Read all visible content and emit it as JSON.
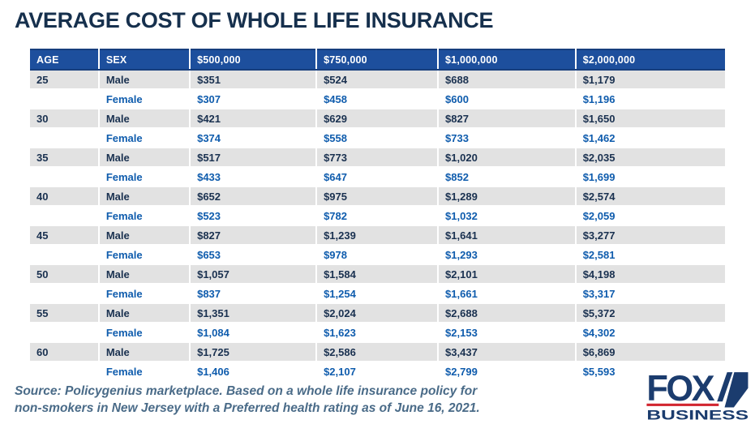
{
  "title": "AVERAGE COST OF WHOLE LIFE INSURANCE",
  "chart_data": {
    "type": "table",
    "title": "AVERAGE COST OF WHOLE LIFE INSURANCE",
    "columns": [
      "AGE",
      "SEX",
      "$500,000",
      "$750,000",
      "$1,000,000",
      "$2,000,000"
    ],
    "rows": [
      {
        "age": "25",
        "sex": "Male",
        "variant": "male",
        "values": [
          "$351",
          "$524",
          "$688",
          "$1,179"
        ]
      },
      {
        "age": "",
        "sex": "Female",
        "variant": "female",
        "values": [
          "$307",
          "$458",
          "$600",
          "$1,196"
        ]
      },
      {
        "age": "30",
        "sex": "Male",
        "variant": "male",
        "values": [
          "$421",
          "$629",
          "$827",
          "$1,650"
        ]
      },
      {
        "age": "",
        "sex": "Female",
        "variant": "female",
        "values": [
          "$374",
          "$558",
          "$733",
          "$1,462"
        ]
      },
      {
        "age": "35",
        "sex": "Male",
        "variant": "male",
        "values": [
          "$517",
          "$773",
          "$1,020",
          "$2,035"
        ]
      },
      {
        "age": "",
        "sex": "Female",
        "variant": "female",
        "values": [
          "$433",
          "$647",
          "$852",
          "$1,699"
        ]
      },
      {
        "age": "40",
        "sex": "Male",
        "variant": "male",
        "values": [
          "$652",
          "$975",
          "$1,289",
          "$2,574"
        ]
      },
      {
        "age": "",
        "sex": "Female",
        "variant": "female",
        "values": [
          "$523",
          "$782",
          "$1,032",
          "$2,059"
        ]
      },
      {
        "age": "45",
        "sex": "Male",
        "variant": "male",
        "values": [
          "$827",
          "$1,239",
          "$1,641",
          "$3,277"
        ]
      },
      {
        "age": "",
        "sex": "Female",
        "variant": "female",
        "values": [
          "$653",
          "$978",
          "$1,293",
          "$2,581"
        ]
      },
      {
        "age": "50",
        "sex": "Male",
        "variant": "male",
        "values": [
          "$1,057",
          "$1,584",
          "$2,101",
          "$4,198"
        ]
      },
      {
        "age": "",
        "sex": "Female",
        "variant": "female",
        "values": [
          "$837",
          "$1,254",
          "$1,661",
          "$3,317"
        ]
      },
      {
        "age": "55",
        "sex": "Male",
        "variant": "male",
        "values": [
          "$1,351",
          "$2,024",
          "$2,688",
          "$5,372"
        ]
      },
      {
        "age": "",
        "sex": "Female",
        "variant": "female",
        "values": [
          "$1,084",
          "$1,623",
          "$2,153",
          "$4,302"
        ]
      },
      {
        "age": "60",
        "sex": "Male",
        "variant": "male",
        "values": [
          "$1,725",
          "$2,586",
          "$3,437",
          "$6,869"
        ]
      },
      {
        "age": "",
        "sex": "Female",
        "variant": "female",
        "values": [
          "$1,406",
          "$2,107",
          "$2,799",
          "$5,593"
        ]
      }
    ]
  },
  "source": {
    "line1": "Source: Policygenius marketplace. Based on a whole life insurance policy for",
    "line2": "non-smokers in New Jersey with a Preferred health rating as of June 16, 2021."
  },
  "logo": {
    "fox": "FOX",
    "business": "BUSINESS"
  },
  "colors": {
    "title_navy": "#16304d",
    "header_bg": "#1d4f9d",
    "header_border": "#173e7d",
    "row_gray": "#e2e2e2",
    "male_text": "#1a3150",
    "female_text": "#0f5cad",
    "source_text": "#4a6b88",
    "logo_navy": "#1b3c6e",
    "logo_red": "#d22630"
  }
}
